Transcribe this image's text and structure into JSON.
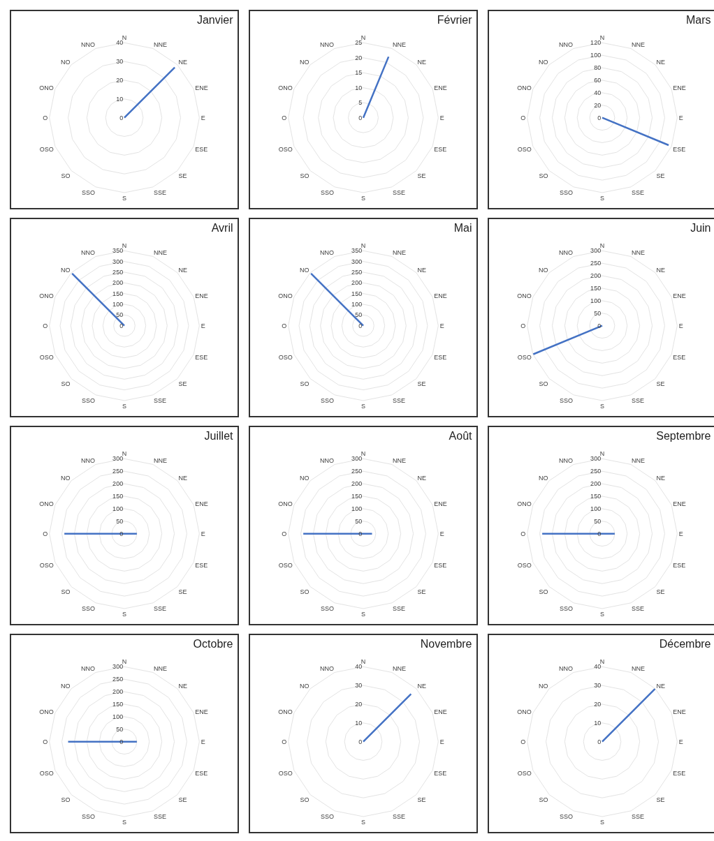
{
  "chart_data": [
    {
      "type": "radar",
      "title": "Janvier",
      "categories": [
        "N",
        "NNE",
        "NE",
        "ENE",
        "E",
        "ESE",
        "SE",
        "SSE",
        "S",
        "SSO",
        "SO",
        "OSO",
        "O",
        "ONO",
        "NO",
        "NNO"
      ],
      "series": [
        {
          "color": "#4472c4",
          "values": [
            0,
            0,
            38,
            0,
            0,
            0,
            0,
            0,
            0,
            0,
            0,
            0,
            0,
            0,
            0,
            0
          ]
        }
      ],
      "ylim": [
        0,
        40
      ],
      "yticks": [
        0,
        10,
        20,
        30,
        40
      ],
      "grid": true
    },
    {
      "type": "radar",
      "title": "Février",
      "categories": [
        "N",
        "NNE",
        "NE",
        "ENE",
        "E",
        "ESE",
        "SE",
        "SSE",
        "S",
        "SSO",
        "SO",
        "OSO",
        "O",
        "ONO",
        "NO",
        "NNO"
      ],
      "series": [
        {
          "color": "#4472c4",
          "values": [
            0,
            22,
            0,
            0,
            0,
            0,
            0,
            0,
            0,
            0,
            0,
            0,
            0,
            0,
            0,
            0
          ]
        }
      ],
      "ylim": [
        0,
        25
      ],
      "yticks": [
        0,
        5,
        10,
        15,
        20,
        25
      ],
      "grid": true
    },
    {
      "type": "radar",
      "title": "Mars",
      "categories": [
        "N",
        "NNE",
        "NE",
        "ENE",
        "E",
        "ESE",
        "SE",
        "SSE",
        "S",
        "SSO",
        "SO",
        "OSO",
        "O",
        "ONO",
        "NO",
        "NNO"
      ],
      "series": [
        {
          "color": "#4472c4",
          "values": [
            0,
            0,
            0,
            0,
            0,
            115,
            0,
            0,
            0,
            0,
            0,
            0,
            0,
            0,
            0,
            0
          ]
        }
      ],
      "ylim": [
        0,
        120
      ],
      "yticks": [
        0,
        20,
        40,
        60,
        80,
        100,
        120
      ],
      "grid": true
    },
    {
      "type": "radar",
      "title": "Avril",
      "categories": [
        "N",
        "NNE",
        "NE",
        "ENE",
        "E",
        "ESE",
        "SE",
        "SSE",
        "S",
        "SSO",
        "SO",
        "OSO",
        "O",
        "ONO",
        "NO",
        "NNO"
      ],
      "series": [
        {
          "color": "#4472c4",
          "values": [
            0,
            0,
            0,
            0,
            0,
            0,
            0,
            0,
            0,
            0,
            0,
            0,
            0,
            0,
            345,
            0
          ]
        }
      ],
      "ylim": [
        0,
        350
      ],
      "yticks": [
        0,
        50,
        100,
        150,
        200,
        250,
        300,
        350
      ],
      "grid": true
    },
    {
      "type": "radar",
      "title": "Mai",
      "categories": [
        "N",
        "NNE",
        "NE",
        "ENE",
        "E",
        "ESE",
        "SE",
        "SSE",
        "S",
        "SSO",
        "SO",
        "OSO",
        "O",
        "ONO",
        "NO",
        "NNO"
      ],
      "series": [
        {
          "color": "#4472c4",
          "values": [
            0,
            0,
            0,
            0,
            0,
            0,
            0,
            0,
            0,
            0,
            0,
            0,
            0,
            0,
            345,
            0
          ]
        }
      ],
      "ylim": [
        0,
        350
      ],
      "yticks": [
        0,
        50,
        100,
        150,
        200,
        250,
        300,
        350
      ],
      "grid": true
    },
    {
      "type": "radar",
      "title": "Juin",
      "categories": [
        "N",
        "NNE",
        "NE",
        "ENE",
        "E",
        "ESE",
        "SE",
        "SSE",
        "S",
        "SSO",
        "SO",
        "OSO",
        "O",
        "ONO",
        "NO",
        "NNO"
      ],
      "series": [
        {
          "color": "#4472c4",
          "values": [
            0,
            0,
            0,
            0,
            0,
            0,
            0,
            0,
            0,
            0,
            0,
            300,
            0,
            0,
            0,
            0
          ]
        }
      ],
      "ylim": [
        0,
        300
      ],
      "yticks": [
        0,
        50,
        100,
        150,
        200,
        250,
        300
      ],
      "grid": true
    },
    {
      "type": "radar",
      "title": "Juillet",
      "categories": [
        "N",
        "NNE",
        "NE",
        "ENE",
        "E",
        "ESE",
        "SE",
        "SSE",
        "S",
        "SSO",
        "SO",
        "OSO",
        "O",
        "ONO",
        "NO",
        "NNO"
      ],
      "series": [
        {
          "color": "#4472c4",
          "values": [
            0,
            0,
            0,
            0,
            50,
            0,
            0,
            0,
            0,
            0,
            0,
            0,
            240,
            0,
            0,
            0
          ]
        }
      ],
      "ylim": [
        0,
        300
      ],
      "yticks": [
        0,
        50,
        100,
        150,
        200,
        250,
        300
      ],
      "grid": true
    },
    {
      "type": "radar",
      "title": "Août",
      "categories": [
        "N",
        "NNE",
        "NE",
        "ENE",
        "E",
        "ESE",
        "SE",
        "SSE",
        "S",
        "SSO",
        "SO",
        "OSO",
        "O",
        "ONO",
        "NO",
        "NNO"
      ],
      "series": [
        {
          "color": "#4472c4",
          "values": [
            0,
            0,
            0,
            0,
            35,
            0,
            0,
            0,
            0,
            0,
            0,
            0,
            240,
            0,
            0,
            0
          ]
        }
      ],
      "ylim": [
        0,
        300
      ],
      "yticks": [
        0,
        50,
        100,
        150,
        200,
        250,
        300
      ],
      "grid": true
    },
    {
      "type": "radar",
      "title": "Septembre",
      "categories": [
        "N",
        "NNE",
        "NE",
        "ENE",
        "E",
        "ESE",
        "SE",
        "SSE",
        "S",
        "SSO",
        "SO",
        "OSO",
        "O",
        "ONO",
        "NO",
        "NNO"
      ],
      "series": [
        {
          "color": "#4472c4",
          "values": [
            0,
            0,
            0,
            0,
            50,
            0,
            0,
            0,
            0,
            0,
            0,
            0,
            240,
            0,
            0,
            0
          ]
        }
      ],
      "ylim": [
        0,
        300
      ],
      "yticks": [
        0,
        50,
        100,
        150,
        200,
        250,
        300
      ],
      "grid": true
    },
    {
      "type": "radar",
      "title": "Octobre",
      "categories": [
        "N",
        "NNE",
        "NE",
        "ENE",
        "E",
        "ESE",
        "SE",
        "SSE",
        "S",
        "SSO",
        "SO",
        "OSO",
        "O",
        "ONO",
        "NO",
        "NNO"
      ],
      "series": [
        {
          "color": "#4472c4",
          "values": [
            0,
            0,
            0,
            0,
            50,
            0,
            0,
            0,
            0,
            0,
            0,
            0,
            225,
            0,
            0,
            0
          ]
        }
      ],
      "ylim": [
        0,
        300
      ],
      "yticks": [
        0,
        50,
        100,
        150,
        200,
        250,
        300
      ],
      "grid": true
    },
    {
      "type": "radar",
      "title": "Novembre",
      "categories": [
        "N",
        "NNE",
        "NE",
        "ENE",
        "E",
        "ESE",
        "SE",
        "SSE",
        "S",
        "SSO",
        "SO",
        "OSO",
        "O",
        "ONO",
        "NO",
        "NNO"
      ],
      "series": [
        {
          "color": "#4472c4",
          "values": [
            0,
            0,
            36,
            0,
            0,
            0,
            0,
            0,
            0,
            0,
            0,
            0,
            0,
            0,
            0,
            0
          ]
        }
      ],
      "ylim": [
        0,
        40
      ],
      "yticks": [
        0,
        10,
        20,
        30,
        40
      ],
      "grid": true
    },
    {
      "type": "radar",
      "title": "Décembre",
      "categories": [
        "N",
        "NNE",
        "NE",
        "ENE",
        "E",
        "ESE",
        "SE",
        "SSE",
        "S",
        "SSO",
        "SO",
        "OSO",
        "O",
        "ONO",
        "NO",
        "NNO"
      ],
      "series": [
        {
          "color": "#4472c4",
          "values": [
            0,
            0,
            40,
            0,
            0,
            0,
            0,
            0,
            0,
            0,
            0,
            0,
            0,
            0,
            0,
            0
          ]
        }
      ],
      "ylim": [
        0,
        40
      ],
      "yticks": [
        0,
        10,
        20,
        30,
        40
      ],
      "grid": true
    }
  ]
}
